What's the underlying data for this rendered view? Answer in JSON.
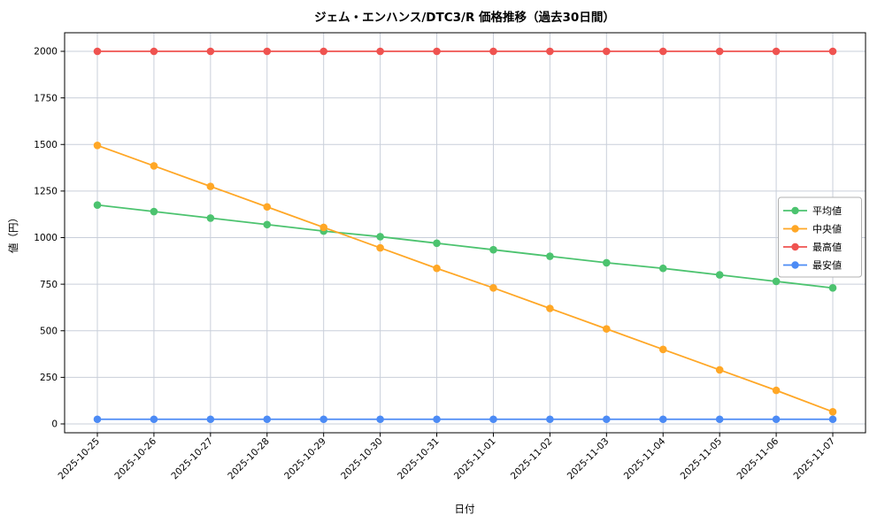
{
  "chart_data": {
    "type": "line",
    "title": "ジェム・エンハンス/DTC3/R 価格推移（過去30日間）",
    "xlabel": "日付",
    "ylabel": "値（円）",
    "ylim": [
      0,
      2000
    ],
    "yticks": [
      0,
      250,
      500,
      750,
      1000,
      1250,
      1500,
      1750,
      2000
    ],
    "grid": true,
    "legend_position": "center-right",
    "categories": [
      "2025-10-25",
      "2025-10-26",
      "2025-10-27",
      "2025-10-28",
      "2025-10-29",
      "2025-10-30",
      "2025-10-31",
      "2025-11-01",
      "2025-11-02",
      "2025-11-03",
      "2025-11-04",
      "2025-11-05",
      "2025-11-06",
      "2025-11-07"
    ],
    "series": [
      {
        "name": "平均値",
        "color": "#4cc36f",
        "values": [
          1175,
          1140,
          1105,
          1070,
          1035,
          1005,
          970,
          935,
          900,
          865,
          835,
          800,
          765,
          730
        ]
      },
      {
        "name": "中央値",
        "color": "#ffa726",
        "values": [
          1495,
          1385,
          1275,
          1165,
          1055,
          945,
          835,
          730,
          620,
          510,
          400,
          290,
          180,
          65
        ]
      },
      {
        "name": "最高値",
        "color": "#ef5350",
        "values": [
          2000,
          2000,
          2000,
          2000,
          2000,
          2000,
          2000,
          2000,
          2000,
          2000,
          2000,
          2000,
          2000,
          2000
        ]
      },
      {
        "name": "最安値",
        "color": "#4c8bf5",
        "values": [
          25,
          25,
          25,
          25,
          25,
          25,
          25,
          25,
          25,
          25,
          25,
          25,
          25,
          25
        ]
      }
    ],
    "colors": {
      "background": "#ffffff",
      "grid": "#c9cfda",
      "frame": "#000000",
      "legend_border": "#b0b0b0"
    }
  }
}
